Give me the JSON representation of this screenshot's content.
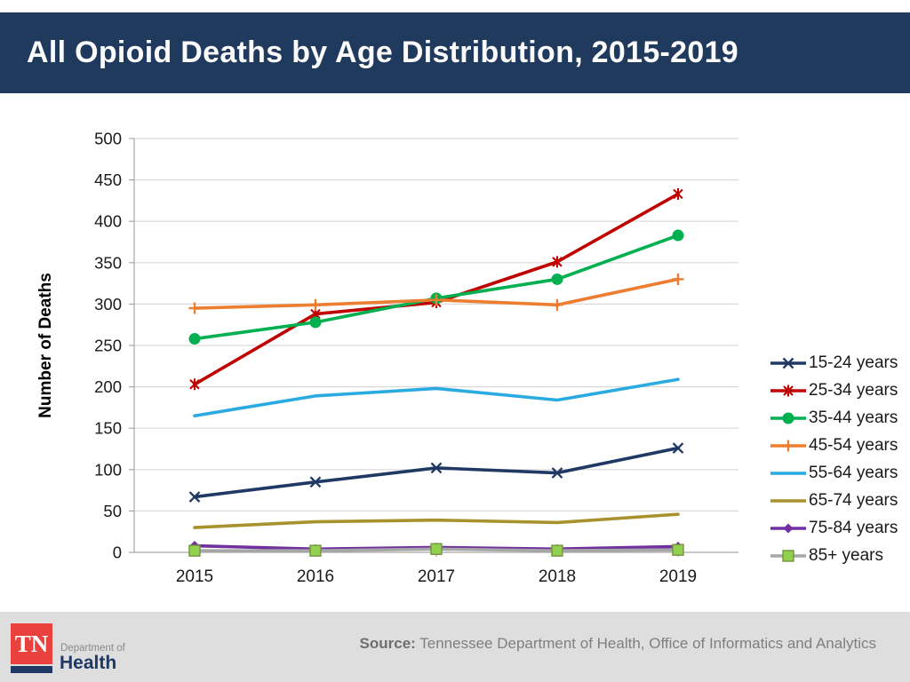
{
  "header": {
    "title": "All Opioid Deaths by Age Distribution, 2015-2019"
  },
  "chart_data": {
    "type": "line",
    "title": "All Opioid Deaths by Age Distribution, 2015-2019",
    "categories": [
      "2015",
      "2016",
      "2017",
      "2018",
      "2019"
    ],
    "xlabel": "",
    "ylabel": "Number of Deaths",
    "ylim": [
      0,
      500
    ],
    "ytick_step": 50,
    "grid": true,
    "legend_position": "right",
    "series": [
      {
        "name": "15-24 years",
        "color": "#1F3864",
        "marker": "x",
        "values": [
          67,
          85,
          102,
          96,
          126
        ]
      },
      {
        "name": "25-34 years",
        "color": "#C00000",
        "marker": "asterisk",
        "values": [
          203,
          288,
          302,
          351,
          433
        ]
      },
      {
        "name": "35-44 years",
        "color": "#00B050",
        "marker": "circle",
        "values": [
          258,
          278,
          307,
          330,
          383
        ]
      },
      {
        "name": "45-54 years",
        "color": "#ED7D31",
        "marker": "plus",
        "values": [
          295,
          299,
          305,
          299,
          330
        ]
      },
      {
        "name": "55-64 years",
        "color": "#29ABE2",
        "marker": "none",
        "values": [
          165,
          189,
          198,
          184,
          209
        ]
      },
      {
        "name": "65-74 years",
        "color": "#A8922E",
        "marker": "none",
        "values": [
          30,
          37,
          39,
          36,
          46
        ]
      },
      {
        "name": "75-84 years",
        "color": "#7030A0",
        "marker": "diamond",
        "values": [
          8,
          4,
          6,
          4,
          7
        ]
      },
      {
        "name": "85+ years",
        "color": "#A6A6A6",
        "marker": "square",
        "marker_fill": "#92D050",
        "marker_stroke": "#76933C",
        "values": [
          2,
          2,
          4,
          2,
          3
        ]
      }
    ]
  },
  "footer": {
    "source_label": "Source:",
    "source_text": "Tennessee Department of Health, Office of Informatics and Analytics",
    "logo": {
      "tn": "TN",
      "dept": "Department of",
      "health": "Health"
    }
  },
  "colors": {
    "header_bg": "#203A5E",
    "footer_bg": "#DEDEDE",
    "logo_red": "#E8413E",
    "logo_navy": "#1F3864",
    "gridline": "#D9D9D9",
    "axis": "#A6A6A6"
  }
}
